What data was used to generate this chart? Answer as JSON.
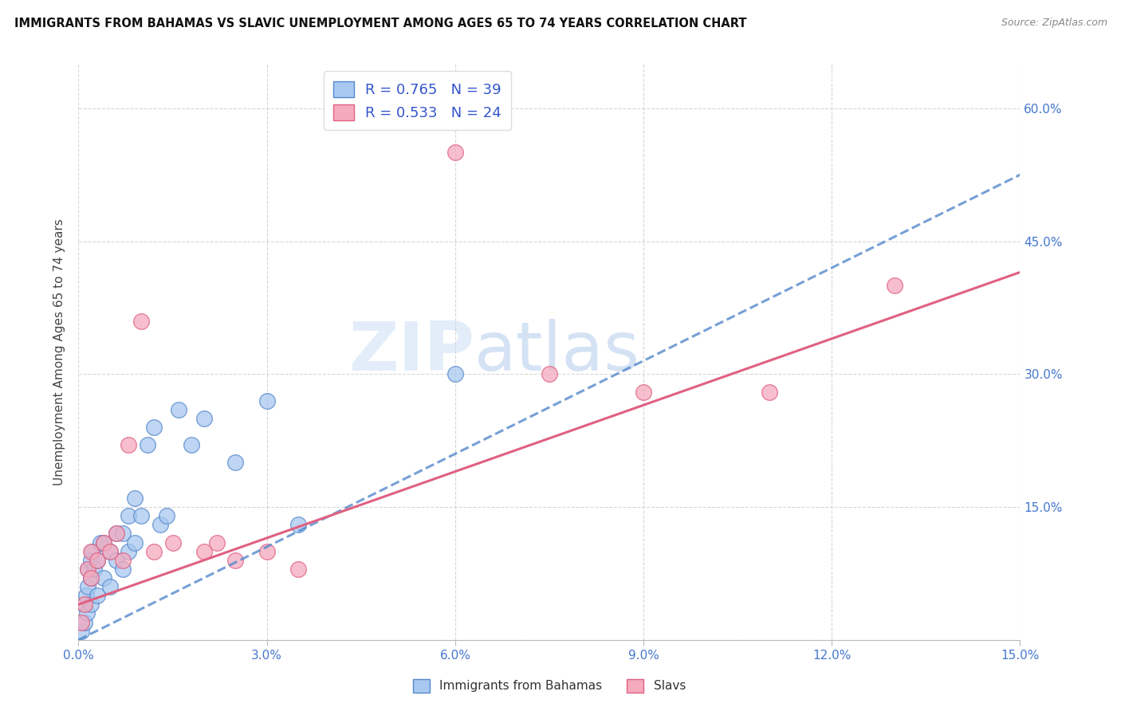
{
  "title": "IMMIGRANTS FROM BAHAMAS VS SLAVIC UNEMPLOYMENT AMONG AGES 65 TO 74 YEARS CORRELATION CHART",
  "source": "Source: ZipAtlas.com",
  "ylabel": "Unemployment Among Ages 65 to 74 years",
  "x_min": 0.0,
  "x_max": 0.15,
  "y_min": 0.0,
  "y_max": 0.65,
  "x_ticks": [
    0.0,
    0.03,
    0.06,
    0.09,
    0.12,
    0.15
  ],
  "x_tick_labels": [
    "0.0%",
    "3.0%",
    "6.0%",
    "9.0%",
    "12.0%",
    "15.0%"
  ],
  "y_ticks": [
    0.0,
    0.15,
    0.3,
    0.45,
    0.6
  ],
  "y_tick_labels": [
    "",
    "15.0%",
    "30.0%",
    "45.0%",
    "60.0%"
  ],
  "legend_label_blue": "Immigrants from Bahamas",
  "legend_label_pink": "Slavs",
  "blue_color": "#a8c8f0",
  "pink_color": "#f5aabe",
  "trend_blue_color": "#5588cc",
  "trend_pink_color": "#e06080",
  "watermark_zip": "ZIP",
  "watermark_atlas": "atlas",
  "blue_scatter_x": [
    0.0005,
    0.001,
    0.001,
    0.0012,
    0.0013,
    0.0015,
    0.0015,
    0.002,
    0.002,
    0.002,
    0.0022,
    0.0025,
    0.003,
    0.003,
    0.0035,
    0.004,
    0.004,
    0.005,
    0.005,
    0.006,
    0.006,
    0.007,
    0.007,
    0.008,
    0.008,
    0.009,
    0.009,
    0.01,
    0.011,
    0.012,
    0.013,
    0.014,
    0.016,
    0.018,
    0.02,
    0.025,
    0.03,
    0.035,
    0.06
  ],
  "blue_scatter_y": [
    0.01,
    0.02,
    0.04,
    0.05,
    0.03,
    0.06,
    0.08,
    0.04,
    0.07,
    0.09,
    0.1,
    0.08,
    0.05,
    0.09,
    0.11,
    0.07,
    0.11,
    0.06,
    0.1,
    0.09,
    0.12,
    0.08,
    0.12,
    0.1,
    0.14,
    0.11,
    0.16,
    0.14,
    0.22,
    0.24,
    0.13,
    0.14,
    0.26,
    0.22,
    0.25,
    0.2,
    0.27,
    0.13,
    0.3
  ],
  "pink_scatter_x": [
    0.0005,
    0.001,
    0.0015,
    0.002,
    0.002,
    0.003,
    0.004,
    0.005,
    0.006,
    0.007,
    0.008,
    0.01,
    0.012,
    0.015,
    0.02,
    0.022,
    0.025,
    0.03,
    0.035,
    0.06,
    0.075,
    0.09,
    0.11,
    0.13
  ],
  "pink_scatter_y": [
    0.02,
    0.04,
    0.08,
    0.07,
    0.1,
    0.09,
    0.11,
    0.1,
    0.12,
    0.09,
    0.22,
    0.36,
    0.1,
    0.11,
    0.1,
    0.11,
    0.09,
    0.1,
    0.08,
    0.55,
    0.3,
    0.28,
    0.28,
    0.4
  ],
  "trend_blue_slope": 3.5,
  "trend_blue_intercept": 0.0,
  "trend_pink_slope": 2.5,
  "trend_pink_intercept": 0.04
}
